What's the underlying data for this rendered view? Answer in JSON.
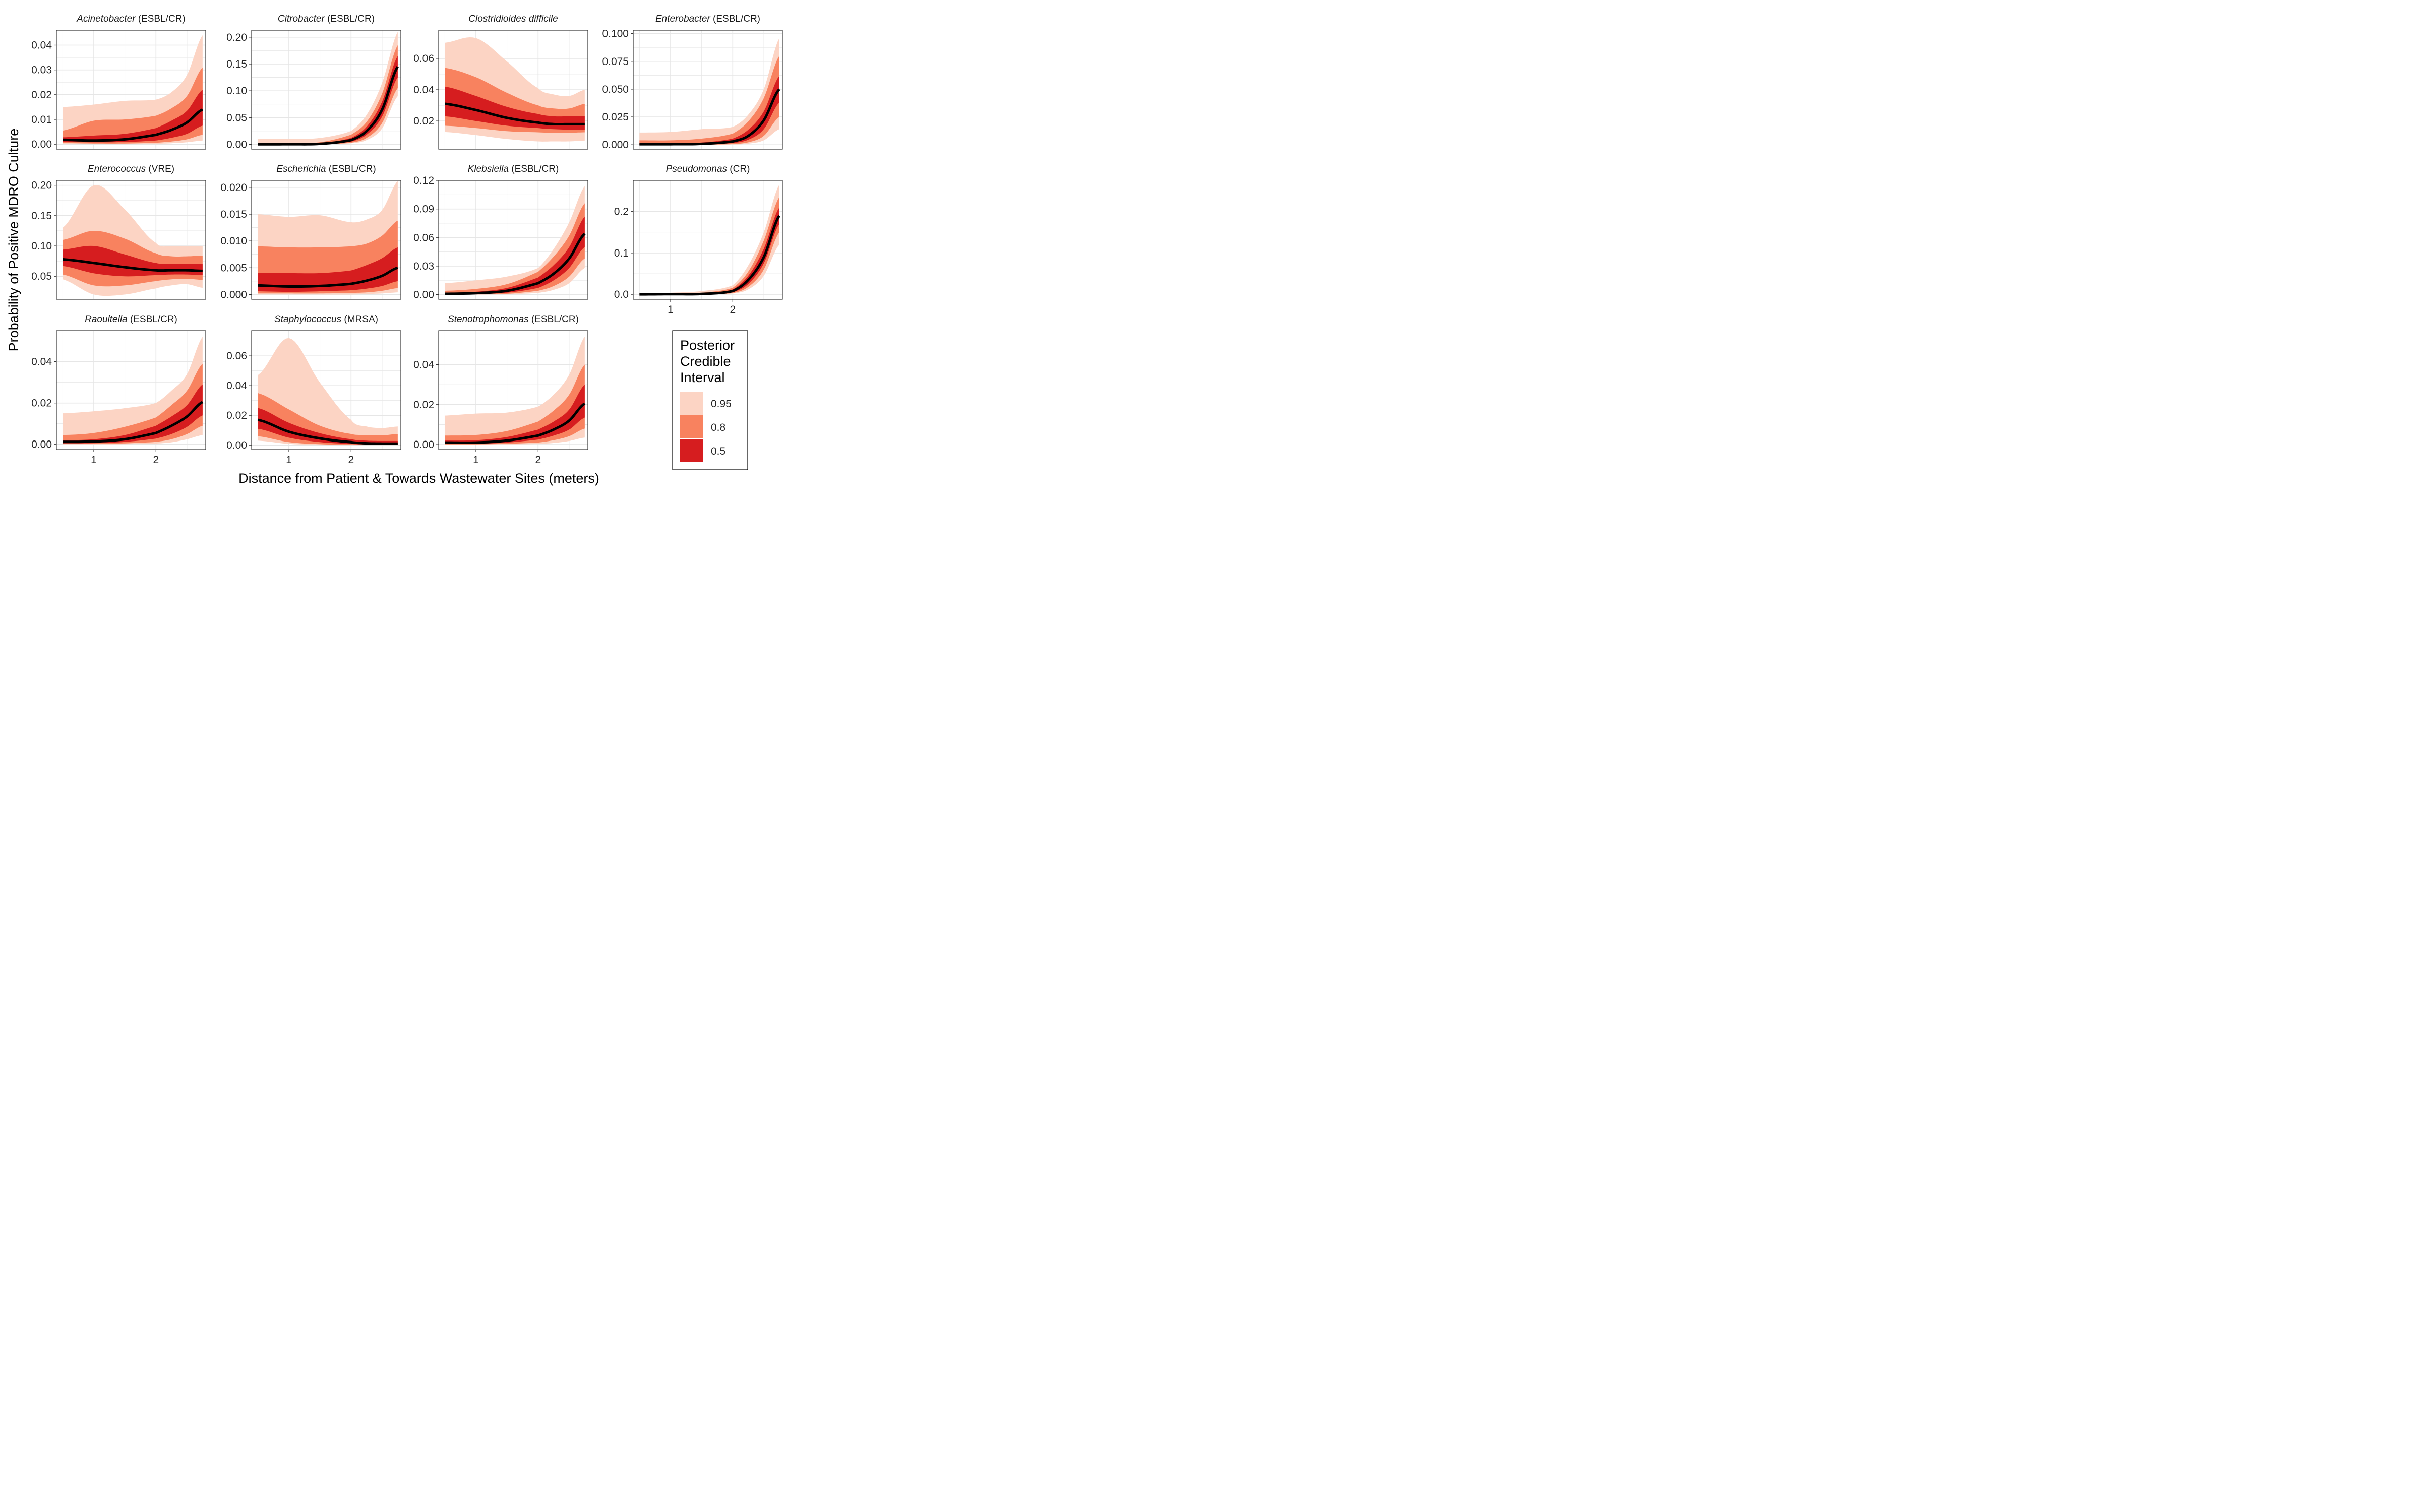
{
  "chart_data": {
    "type": "area",
    "xlabel": "Distance from Patient & Towards Wastewater Sites (meters)",
    "ylabel": "Probability of Positive MDRO Culture",
    "x_ticks": [
      1,
      2
    ],
    "xlim": [
      0.4,
      2.8
    ],
    "legend": {
      "title_lines": [
        "Posterior",
        "Credible",
        "Interval"
      ],
      "placement": "bottom-right",
      "entries": [
        {
          "label": "0.95",
          "color": "#FCD4C4"
        },
        {
          "label": "0.8",
          "color": "#F8825F"
        },
        {
          "label": "0.5",
          "color": "#D61D1F"
        }
      ]
    },
    "colors": {
      "ci95": "#FCD4C4",
      "ci80": "#F8825F",
      "ci50": "#D61D1F",
      "median": "#000000",
      "grid": "#E6E6E6"
    },
    "x": [
      0.5,
      1.0,
      1.5,
      2.0,
      2.25,
      2.5,
      2.75
    ],
    "panels": [
      {
        "genus": "Acinetobacter",
        "suffix": " (ESBL/CR)",
        "ylim": [
          -0.002,
          0.046
        ],
        "yticks": [
          0,
          0.01,
          0.02,
          0.03,
          0.04
        ],
        "yticklabels": [
          "0.00",
          "0.01",
          "0.02",
          "0.03",
          "0.04"
        ],
        "median": [
          0.0018,
          0.0015,
          0.002,
          0.0038,
          0.0058,
          0.0088,
          0.014
        ],
        "lo50": [
          0.001,
          0.0008,
          0.0009,
          0.0015,
          0.0026,
          0.0042,
          0.0075
        ],
        "hi50": [
          0.0028,
          0.0035,
          0.0042,
          0.0065,
          0.0095,
          0.0135,
          0.022
        ],
        "lo80": [
          0.0005,
          0.0003,
          0.0003,
          0.0006,
          0.0011,
          0.002,
          0.0038
        ],
        "hi80": [
          0.0055,
          0.0095,
          0.01,
          0.0115,
          0.0145,
          0.0195,
          0.031
        ],
        "lo95": [
          0.0001,
          0.0001,
          0.0001,
          0.0002,
          0.0004,
          0.0008,
          0.0015
        ],
        "hi95": [
          0.015,
          0.016,
          0.0175,
          0.018,
          0.021,
          0.028,
          0.044
        ]
      },
      {
        "genus": "Citrobacter",
        "suffix": " (ESBL/CR)",
        "ylim": [
          -0.009,
          0.213
        ],
        "yticks": [
          0,
          0.05,
          0.1,
          0.15,
          0.2
        ],
        "yticklabels": [
          "0.00",
          "0.05",
          "0.10",
          "0.15",
          "0.20"
        ],
        "median": [
          0.0002,
          0.0003,
          0.001,
          0.008,
          0.025,
          0.065,
          0.145
        ],
        "lo50": [
          0.0001,
          0.0001,
          0.0005,
          0.005,
          0.018,
          0.052,
          0.125
        ],
        "hi50": [
          0.0004,
          0.0006,
          0.002,
          0.012,
          0.033,
          0.08,
          0.165
        ],
        "lo80": [
          0.0,
          0.0,
          0.0002,
          0.003,
          0.012,
          0.04,
          0.105
        ],
        "hi80": [
          0.0015,
          0.002,
          0.004,
          0.018,
          0.042,
          0.095,
          0.185
        ],
        "lo95": [
          0.0,
          0.0,
          0.0001,
          0.002,
          0.008,
          0.03,
          0.09
        ],
        "hi95": [
          0.01,
          0.01,
          0.012,
          0.025,
          0.055,
          0.115,
          0.21
        ]
      },
      {
        "genus": "Clostridioides difficile",
        "suffix": "",
        "ylim": [
          0.002,
          0.078
        ],
        "yticks": [
          0.02,
          0.04,
          0.06
        ],
        "yticklabels": [
          "0.02",
          "0.04",
          "0.06"
        ],
        "median": [
          0.031,
          0.027,
          0.022,
          0.019,
          0.018,
          0.018,
          0.018
        ],
        "lo50": [
          0.023,
          0.02,
          0.017,
          0.0155,
          0.0148,
          0.0145,
          0.0145
        ],
        "hi50": [
          0.042,
          0.036,
          0.029,
          0.0245,
          0.023,
          0.023,
          0.023
        ],
        "lo80": [
          0.017,
          0.0155,
          0.0135,
          0.0128,
          0.0125,
          0.0125,
          0.0128
        ],
        "hi80": [
          0.054,
          0.048,
          0.038,
          0.03,
          0.028,
          0.028,
          0.031
        ],
        "lo95": [
          0.013,
          0.011,
          0.0085,
          0.007,
          0.007,
          0.007,
          0.0075
        ],
        "hi95": [
          0.07,
          0.073,
          0.058,
          0.041,
          0.037,
          0.036,
          0.04
        ]
      },
      {
        "genus": "Enterobacter",
        "suffix": " (ESBL/CR)",
        "ylim": [
          -0.004,
          0.103
        ],
        "yticks": [
          0,
          0.025,
          0.05,
          0.075,
          0.1
        ],
        "yticklabels": [
          "0.000",
          "0.025",
          "0.050",
          "0.075",
          "0.100"
        ],
        "median": [
          0.0005,
          0.0005,
          0.0008,
          0.003,
          0.008,
          0.022,
          0.05
        ],
        "lo50": [
          0.0002,
          0.0002,
          0.0003,
          0.0015,
          0.0045,
          0.014,
          0.038
        ],
        "hi50": [
          0.001,
          0.0012,
          0.002,
          0.0055,
          0.0135,
          0.03,
          0.062
        ],
        "lo80": [
          0.0001,
          0.0001,
          0.0001,
          0.0006,
          0.0022,
          0.008,
          0.025
        ],
        "hi80": [
          0.004,
          0.004,
          0.0055,
          0.01,
          0.021,
          0.042,
          0.08
        ],
        "lo95": [
          0.0,
          0.0,
          0.0,
          0.0002,
          0.001,
          0.004,
          0.014
        ],
        "hi95": [
          0.011,
          0.0115,
          0.014,
          0.016,
          0.027,
          0.05,
          0.096
        ]
      },
      {
        "genus": "Enterococcus",
        "suffix": " (VRE)",
        "ylim": [
          0.012,
          0.208
        ],
        "yticks": [
          0.05,
          0.1,
          0.15,
          0.2
        ],
        "yticklabels": [
          "0.05",
          "0.10",
          "0.15",
          "0.20"
        ],
        "median": [
          0.078,
          0.072,
          0.065,
          0.06,
          0.06,
          0.06,
          0.059
        ],
        "lo50": [
          0.067,
          0.055,
          0.05,
          0.052,
          0.053,
          0.053,
          0.052
        ],
        "hi50": [
          0.094,
          0.1,
          0.086,
          0.072,
          0.071,
          0.071,
          0.071
        ],
        "lo80": [
          0.053,
          0.035,
          0.035,
          0.042,
          0.045,
          0.046,
          0.044
        ],
        "hi80": [
          0.11,
          0.125,
          0.112,
          0.088,
          0.083,
          0.083,
          0.084
        ],
        "lo95": [
          0.045,
          0.02,
          0.02,
          0.03,
          0.035,
          0.037,
          0.031
        ],
        "hi95": [
          0.13,
          0.2,
          0.16,
          0.105,
          0.1,
          0.1,
          0.1
        ]
      },
      {
        "genus": "Escherichia",
        "suffix": " (ESBL/CR)",
        "ylim": [
          -0.0009,
          0.0213
        ],
        "yticks": [
          0,
          0.005,
          0.01,
          0.015,
          0.02
        ],
        "yticklabels": [
          "0.000",
          "0.005",
          "0.010",
          "0.015",
          "0.020"
        ],
        "median": [
          0.0017,
          0.0015,
          0.0016,
          0.002,
          0.0026,
          0.0035,
          0.005
        ],
        "lo50": [
          0.0006,
          0.0005,
          0.0006,
          0.0008,
          0.0011,
          0.0016,
          0.0025
        ],
        "hi50": [
          0.004,
          0.004,
          0.004,
          0.0045,
          0.0055,
          0.0068,
          0.0088
        ],
        "lo80": [
          0.0002,
          0.0002,
          0.0002,
          0.0003,
          0.0004,
          0.0007,
          0.0012
        ],
        "hi80": [
          0.009,
          0.0088,
          0.0088,
          0.009,
          0.0095,
          0.011,
          0.0138
        ],
        "lo95": [
          0.0,
          0.0,
          0.0,
          0.0,
          0.0001,
          0.0002,
          0.0004
        ],
        "hi95": [
          0.015,
          0.0145,
          0.0148,
          0.0135,
          0.014,
          0.0158,
          0.0212
        ]
      },
      {
        "genus": "Klebsiella",
        "suffix": " (ESBL/CR)",
        "ylim": [
          -0.005,
          0.12
        ],
        "yticks": [
          0,
          0.03,
          0.06,
          0.09,
          0.12
        ],
        "yticklabels": [
          "0.00",
          "0.03",
          "0.06",
          "0.09",
          "0.12"
        ],
        "median": [
          0.0008,
          0.0015,
          0.004,
          0.012,
          0.022,
          0.038,
          0.064
        ],
        "lo50": [
          0.0003,
          0.0006,
          0.002,
          0.007,
          0.015,
          0.028,
          0.05
        ],
        "hi50": [
          0.002,
          0.003,
          0.007,
          0.018,
          0.031,
          0.05,
          0.082
        ],
        "lo80": [
          0.0001,
          0.0002,
          0.0008,
          0.004,
          0.009,
          0.019,
          0.038
        ],
        "hi80": [
          0.004,
          0.006,
          0.011,
          0.024,
          0.04,
          0.062,
          0.096
        ],
        "lo95": [
          0.0,
          0.0001,
          0.0003,
          0.0018,
          0.005,
          0.012,
          0.028
        ],
        "hi95": [
          0.012,
          0.015,
          0.019,
          0.028,
          0.048,
          0.076,
          0.114
        ]
      },
      {
        "genus": "Pseudomonas",
        "suffix": " (CR)",
        "ylim": [
          -0.012,
          0.275
        ],
        "yticks": [
          0,
          0.1,
          0.2
        ],
        "yticklabels": [
          "0.0",
          "0.1",
          "0.2"
        ],
        "median": [
          0.0,
          0.0005,
          0.001,
          0.008,
          0.035,
          0.09,
          0.19
        ],
        "lo50": [
          0.0,
          0.0002,
          0.0005,
          0.005,
          0.025,
          0.075,
          0.17
        ],
        "hi50": [
          0.0003,
          0.001,
          0.002,
          0.012,
          0.045,
          0.11,
          0.21
        ],
        "lo80": [
          0.0,
          0.0,
          0.0002,
          0.003,
          0.018,
          0.06,
          0.15
        ],
        "hi80": [
          0.0005,
          0.002,
          0.004,
          0.016,
          0.055,
          0.13,
          0.235
        ],
        "lo95": [
          0.0,
          0.0,
          0.0001,
          0.002,
          0.012,
          0.045,
          0.12
        ],
        "hi95": [
          0.002,
          0.004,
          0.008,
          0.022,
          0.07,
          0.15,
          0.265
        ]
      },
      {
        "genus": "Raoultella",
        "suffix": " (ESBL/CR)",
        "ylim": [
          -0.0025,
          0.055
        ],
        "yticks": [
          0,
          0.02,
          0.04
        ],
        "yticklabels": [
          "0.00",
          "0.02",
          "0.04"
        ],
        "median": [
          0.0012,
          0.0014,
          0.0025,
          0.0055,
          0.009,
          0.0135,
          0.0205
        ],
        "lo50": [
          0.0005,
          0.0006,
          0.0012,
          0.0028,
          0.005,
          0.0085,
          0.014
        ],
        "hi50": [
          0.002,
          0.0025,
          0.0045,
          0.009,
          0.0135,
          0.019,
          0.029
        ],
        "lo80": [
          0.0002,
          0.0002,
          0.0005,
          0.0012,
          0.0025,
          0.005,
          0.009
        ],
        "hi80": [
          0.0045,
          0.0055,
          0.0085,
          0.013,
          0.019,
          0.026,
          0.039
        ],
        "lo95": [
          0.0,
          0.0,
          0.0001,
          0.0004,
          0.001,
          0.0025,
          0.0045
        ],
        "hi95": [
          0.015,
          0.016,
          0.0175,
          0.02,
          0.026,
          0.034,
          0.052
        ]
      },
      {
        "genus": "Staphylococcus",
        "suffix": " (MRSA)",
        "ylim": [
          -0.003,
          0.077
        ],
        "yticks": [
          0,
          0.02,
          0.04,
          0.06
        ],
        "yticklabels": [
          "0.00",
          "0.02",
          "0.04",
          "0.06"
        ],
        "median": [
          0.017,
          0.009,
          0.0045,
          0.002,
          0.0012,
          0.001,
          0.001
        ],
        "lo50": [
          0.011,
          0.005,
          0.002,
          0.0008,
          0.0004,
          0.0003,
          0.0003
        ],
        "hi50": [
          0.025,
          0.015,
          0.008,
          0.004,
          0.003,
          0.0028,
          0.0028
        ],
        "lo80": [
          0.006,
          0.002,
          0.0006,
          0.0002,
          0.0001,
          0.0001,
          0.0001
        ],
        "hi80": [
          0.035,
          0.024,
          0.013,
          0.0075,
          0.0068,
          0.0065,
          0.0075
        ],
        "lo95": [
          0.003,
          0.0008,
          0.0002,
          0.0,
          0.0,
          0.0,
          0.0
        ],
        "hi95": [
          0.047,
          0.072,
          0.042,
          0.017,
          0.0125,
          0.0115,
          0.0125
        ]
      },
      {
        "genus": "Stenotrophomonas",
        "suffix": " (ESBL/CR)",
        "ylim": [
          -0.0025,
          0.057
        ],
        "yticks": [
          0,
          0.02,
          0.04
        ],
        "yticklabels": [
          "0.00",
          "0.02",
          "0.04"
        ],
        "median": [
          0.001,
          0.001,
          0.002,
          0.0045,
          0.0075,
          0.012,
          0.0205
        ],
        "lo50": [
          0.0004,
          0.0004,
          0.001,
          0.0025,
          0.0045,
          0.0075,
          0.0135
        ],
        "hi50": [
          0.002,
          0.0022,
          0.0038,
          0.0075,
          0.0115,
          0.0175,
          0.03
        ],
        "lo80": [
          0.0001,
          0.0001,
          0.0004,
          0.001,
          0.0022,
          0.0042,
          0.008
        ],
        "hi80": [
          0.0045,
          0.0048,
          0.0068,
          0.0115,
          0.017,
          0.025,
          0.04
        ],
        "lo95": [
          0.0,
          0.0,
          0.0001,
          0.0003,
          0.0008,
          0.0018,
          0.0035
        ],
        "hi95": [
          0.0145,
          0.0155,
          0.016,
          0.019,
          0.025,
          0.035,
          0.054
        ]
      }
    ]
  }
}
